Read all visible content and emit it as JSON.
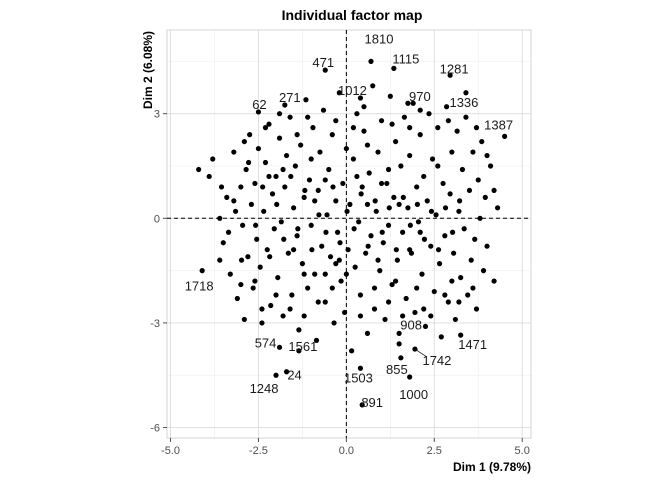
{
  "chart_data": {
    "type": "scatter",
    "title": "Individual factor map",
    "xlabel": "Dim 1 (9.78%)",
    "ylabel": "Dim 2 (6.08%)",
    "xlim": [
      -5.1,
      5.25
    ],
    "ylim": [
      -6.3,
      5.4
    ],
    "xticks": [
      -5.0,
      -2.5,
      0.0,
      2.5,
      5.0
    ],
    "xtick_labels": [
      "-5.0",
      "-2.5",
      "0.0",
      "2.5",
      "5.0"
    ],
    "yticks": [
      -6,
      -3,
      0,
      3
    ],
    "ytick_labels": [
      "-6",
      "-3",
      "0",
      "3"
    ],
    "grid": true,
    "reference_lines": {
      "x": 0,
      "y": 0,
      "style": "dashed"
    },
    "marker_color": "#000000",
    "labeled_points": [
      {
        "label": "1810",
        "x": 0.7,
        "y": 4.5
      },
      {
        "label": "1115",
        "x": 1.35,
        "y": 4.3
      },
      {
        "label": "1281",
        "x": 2.95,
        "y": 4.1
      },
      {
        "label": "471",
        "x": -0.6,
        "y": 4.25
      },
      {
        "label": "1012",
        "x": 0.4,
        "y": 3.45
      },
      {
        "label": "970",
        "x": 1.75,
        "y": 3.3
      },
      {
        "label": "1336",
        "x": 3.4,
        "y": 3.6
      },
      {
        "label": "1387",
        "x": 4.5,
        "y": 2.35
      },
      {
        "label": "62",
        "x": -2.5,
        "y": 3.05
      },
      {
        "label": "271",
        "x": -1.75,
        "y": 3.25
      },
      {
        "label": "1718",
        "x": -4.1,
        "y": -1.5
      },
      {
        "label": "574",
        "x": -1.9,
        "y": -3.7
      },
      {
        "label": "1561",
        "x": -1.35,
        "y": -3.8
      },
      {
        "label": "24",
        "x": -1.7,
        "y": -4.4
      },
      {
        "label": "1248",
        "x": -2.0,
        "y": -4.5
      },
      {
        "label": "908",
        "x": 1.5,
        "y": -3.3
      },
      {
        "label": "1471",
        "x": 3.25,
        "y": -3.35
      },
      {
        "label": "855",
        "x": 1.55,
        "y": -4.0
      },
      {
        "label": "1742",
        "x": 1.95,
        "y": -3.75
      },
      {
        "label": "1503",
        "x": 0.4,
        "y": -4.3
      },
      {
        "label": "1000",
        "x": 1.8,
        "y": -4.55
      },
      {
        "label": "891",
        "x": 0.45,
        "y": -5.35
      }
    ],
    "points": [
      [
        -4.2,
        1.4
      ],
      [
        -3.9,
        1.2
      ],
      [
        -3.6,
        0.0
      ],
      [
        -3.5,
        -0.7
      ],
      [
        -3.4,
        0.6
      ],
      [
        -3.3,
        -1.6
      ],
      [
        -3.2,
        1.9
      ],
      [
        -3.1,
        -2.3
      ],
      [
        -3.0,
        0.9
      ],
      [
        -2.95,
        -0.2
      ],
      [
        -2.9,
        -2.9
      ],
      [
        -2.85,
        1.4
      ],
      [
        -2.8,
        -1.1
      ],
      [
        -2.75,
        2.4
      ],
      [
        -2.7,
        0.4
      ],
      [
        -2.65,
        -2.0
      ],
      [
        -2.6,
        1.0
      ],
      [
        -2.55,
        -0.6
      ],
      [
        -2.5,
        2.0
      ],
      [
        -2.45,
        -1.4
      ],
      [
        -2.4,
        -3.0
      ],
      [
        -2.35,
        0.2
      ],
      [
        -2.3,
        1.6
      ],
      [
        -2.25,
        -0.9
      ],
      [
        -2.2,
        2.7
      ],
      [
        -2.15,
        -2.5
      ],
      [
        -2.1,
        0.7
      ],
      [
        -2.05,
        -0.3
      ],
      [
        -2.0,
        1.2
      ],
      [
        -1.95,
        -1.7
      ],
      [
        -1.9,
        2.3
      ],
      [
        -1.85,
        -0.1
      ],
      [
        -1.8,
        -2.8
      ],
      [
        -1.75,
        0.9
      ],
      [
        -1.7,
        1.8
      ],
      [
        -1.65,
        -1.0
      ],
      [
        -1.6,
        2.9
      ],
      [
        -1.55,
        -2.2
      ],
      [
        -1.5,
        0.3
      ],
      [
        -1.45,
        1.5
      ],
      [
        -1.4,
        -0.5
      ],
      [
        -1.35,
        -3.2
      ],
      [
        -1.3,
        2.1
      ],
      [
        -1.25,
        -1.3
      ],
      [
        -1.2,
        0.6
      ],
      [
        -1.15,
        3.4
      ],
      [
        -1.1,
        -2.0
      ],
      [
        -1.05,
        1.1
      ],
      [
        -1.0,
        -0.2
      ],
      [
        -0.95,
        2.6
      ],
      [
        -0.9,
        -1.6
      ],
      [
        -0.85,
        -3.5
      ],
      [
        -0.8,
        0.8
      ],
      [
        -0.75,
        1.9
      ],
      [
        -0.7,
        -0.8
      ],
      [
        -0.65,
        3.1
      ],
      [
        -0.6,
        -2.4
      ],
      [
        -0.55,
        0.1
      ],
      [
        -0.5,
        1.4
      ],
      [
        -0.45,
        -1.1
      ],
      [
        -0.4,
        2.4
      ],
      [
        -0.35,
        -3.0
      ],
      [
        -0.3,
        0.5
      ],
      [
        -0.25,
        -0.4
      ],
      [
        -0.2,
        3.6
      ],
      [
        -0.15,
        -1.8
      ],
      [
        -0.1,
        1.0
      ],
      [
        -0.05,
        -2.7
      ],
      [
        0.0,
        2.0
      ],
      [
        0.05,
        -0.9
      ],
      [
        0.1,
        0.4
      ],
      [
        0.15,
        -3.8
      ],
      [
        0.2,
        1.7
      ],
      [
        0.25,
        -1.4
      ],
      [
        0.3,
        3.0
      ],
      [
        0.35,
        -0.1
      ],
      [
        0.4,
        -2.2
      ],
      [
        0.45,
        0.9
      ],
      [
        0.5,
        2.5
      ],
      [
        0.55,
        -1.0
      ],
      [
        0.6,
        -3.3
      ],
      [
        0.65,
        1.3
      ],
      [
        0.7,
        -0.5
      ],
      [
        0.75,
        3.8
      ],
      [
        0.8,
        -2.0
      ],
      [
        0.85,
        0.2
      ],
      [
        0.9,
        1.9
      ],
      [
        0.95,
        -1.5
      ],
      [
        1.0,
        2.8
      ],
      [
        1.05,
        -0.7
      ],
      [
        1.1,
        -2.9
      ],
      [
        1.15,
        1.0
      ],
      [
        1.2,
        -0.2
      ],
      [
        1.25,
        3.5
      ],
      [
        1.3,
        -1.9
      ],
      [
        1.35,
        0.6
      ],
      [
        1.4,
        2.2
      ],
      [
        1.45,
        -1.2
      ],
      [
        1.5,
        -3.6
      ],
      [
        1.55,
        1.5
      ],
      [
        1.6,
        -0.4
      ],
      [
        1.65,
        2.9
      ],
      [
        1.7,
        -2.3
      ],
      [
        1.75,
        0.3
      ],
      [
        1.8,
        1.8
      ],
      [
        1.85,
        -1.0
      ],
      [
        1.9,
        3.3
      ],
      [
        1.95,
        -2.7
      ],
      [
        2.0,
        0.9
      ],
      [
        2.05,
        -0.1
      ],
      [
        2.1,
        2.4
      ],
      [
        2.15,
        -1.6
      ],
      [
        2.2,
        1.2
      ],
      [
        2.25,
        -3.1
      ],
      [
        2.3,
        0.5
      ],
      [
        2.35,
        3.0
      ],
      [
        2.4,
        -0.8
      ],
      [
        2.45,
        1.7
      ],
      [
        2.5,
        -2.1
      ],
      [
        2.55,
        0.1
      ],
      [
        2.6,
        2.6
      ],
      [
        2.65,
        -1.3
      ],
      [
        2.7,
        -3.4
      ],
      [
        2.75,
        1.0
      ],
      [
        2.8,
        -0.5
      ],
      [
        2.85,
        3.2
      ],
      [
        2.9,
        -2.4
      ],
      [
        2.95,
        0.7
      ],
      [
        3.0,
        1.9
      ],
      [
        3.05,
        -1.0
      ],
      [
        3.1,
        -2.9
      ],
      [
        3.15,
        2.5
      ],
      [
        3.2,
        0.2
      ],
      [
        3.25,
        -1.7
      ],
      [
        3.3,
        1.4
      ],
      [
        3.35,
        -0.3
      ],
      [
        3.4,
        2.9
      ],
      [
        3.45,
        -2.2
      ],
      [
        3.5,
        0.8
      ],
      [
        3.55,
        -1.2
      ],
      [
        3.6,
        1.9
      ],
      [
        3.65,
        -0.6
      ],
      [
        3.7,
        -2.6
      ],
      [
        3.75,
        1.1
      ],
      [
        3.8,
        0.0
      ],
      [
        3.85,
        2.2
      ],
      [
        3.9,
        -1.5
      ],
      [
        3.95,
        0.6
      ],
      [
        4.0,
        -0.8
      ],
      [
        4.1,
        1.5
      ],
      [
        4.2,
        -1.8
      ],
      [
        4.3,
        0.3
      ],
      [
        -3.55,
        0.9
      ],
      [
        -3.35,
        -0.4
      ],
      [
        -3.15,
        0.2
      ],
      [
        -2.98,
        -1.2
      ],
      [
        -2.78,
        1.6
      ],
      [
        -2.58,
        -0.2
      ],
      [
        -2.38,
        0.9
      ],
      [
        -2.18,
        -1.1
      ],
      [
        -1.98,
        0.4
      ],
      [
        -1.78,
        -0.6
      ],
      [
        -1.58,
        1.2
      ],
      [
        -1.38,
        -0.3
      ],
      [
        -1.18,
        0.8
      ],
      [
        -0.98,
        -0.9
      ],
      [
        -0.78,
        0.1
      ],
      [
        -0.58,
        -0.4
      ],
      [
        -0.38,
        0.9
      ],
      [
        -0.18,
        -0.7
      ],
      [
        0.02,
        0.2
      ],
      [
        0.22,
        -0.3
      ],
      [
        0.42,
        0.7
      ],
      [
        0.62,
        -0.8
      ],
      [
        0.82,
        0.5
      ],
      [
        1.02,
        -0.4
      ],
      [
        1.22,
        0.3
      ],
      [
        1.42,
        -0.9
      ],
      [
        1.62,
        0.6
      ],
      [
        1.82,
        -0.2
      ],
      [
        2.02,
        0.4
      ],
      [
        2.22,
        -0.6
      ],
      [
        2.42,
        0.2
      ],
      [
        2.62,
        -0.9
      ],
      [
        2.82,
        0.3
      ],
      [
        3.02,
        -0.4
      ],
      [
        3.22,
        0.5
      ],
      [
        -1.5,
        -0.9
      ],
      [
        -1.2,
        -1.6
      ],
      [
        -0.9,
        0.5
      ],
      [
        -0.6,
        1.1
      ],
      [
        -0.3,
        -1.3
      ],
      [
        0.3,
        1.2
      ],
      [
        0.6,
        0.4
      ],
      [
        0.9,
        -1.2
      ],
      [
        1.2,
        1.4
      ],
      [
        1.5,
        0.4
      ],
      [
        1.8,
        -0.9
      ],
      [
        2.1,
        -0.4
      ],
      [
        -2.6,
        -1.8
      ],
      [
        -2.2,
        1.2
      ],
      [
        -1.8,
        1.4
      ],
      [
        -1.4,
        2.4
      ],
      [
        -1.0,
        1.7
      ],
      [
        -0.6,
        -1.6
      ],
      [
        -0.2,
        -1.2
      ],
      [
        0.2,
        2.6
      ],
      [
        0.6,
        2.1
      ],
      [
        1.0,
        1.0
      ],
      [
        1.4,
        -1.8
      ],
      [
        1.8,
        2.6
      ],
      [
        2.2,
        -2.6
      ],
      [
        2.6,
        1.5
      ],
      [
        3.0,
        -1.8
      ],
      [
        -3.0,
        -1.9
      ],
      [
        -3.2,
        0.5
      ],
      [
        -2.4,
        -2.6
      ],
      [
        -2.0,
        -2.2
      ],
      [
        -1.6,
        -2.6
      ],
      [
        -1.2,
        -2.8
      ],
      [
        -0.8,
        -2.4
      ],
      [
        -0.4,
        -2.0
      ],
      [
        0.0,
        -1.6
      ],
      [
        0.4,
        -2.8
      ],
      [
        0.8,
        -2.6
      ],
      [
        1.2,
        -2.4
      ],
      [
        1.6,
        -2.8
      ],
      [
        2.0,
        -2.0
      ],
      [
        2.4,
        -2.8
      ],
      [
        2.8,
        -2.2
      ],
      [
        3.2,
        -2.4
      ],
      [
        3.6,
        -2.0
      ],
      [
        -1.9,
        3.0
      ],
      [
        -1.1,
        2.9
      ],
      [
        -0.3,
        2.8
      ],
      [
        0.5,
        3.2
      ],
      [
        1.3,
        2.7
      ],
      [
        2.1,
        3.1
      ],
      [
        2.9,
        2.8
      ],
      [
        3.7,
        2.6
      ],
      [
        -2.9,
        2.2
      ],
      [
        -2.3,
        2.6
      ],
      [
        -3.6,
        -1.2
      ],
      [
        4.0,
        1.8
      ],
      [
        4.2,
        0.8
      ],
      [
        -3.8,
        1.7
      ]
    ]
  }
}
